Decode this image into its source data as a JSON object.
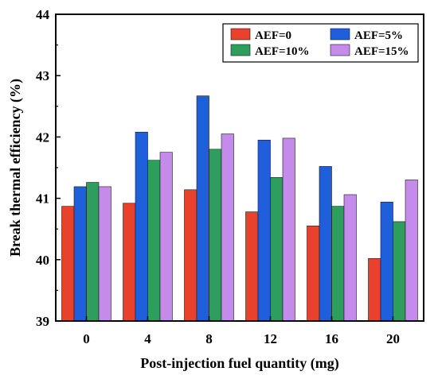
{
  "chart_data": {
    "type": "bar",
    "title": "",
    "xlabel": "Post-injection fuel quantity (mg)",
    "ylabel": "Break thermal efficiency (%)",
    "categories": [
      "0",
      "4",
      "8",
      "12",
      "16",
      "20"
    ],
    "ylim": [
      39,
      44
    ],
    "yticks": [
      "39",
      "40",
      "41",
      "42",
      "43",
      "44"
    ],
    "grid": false,
    "legend_position": "top-right",
    "series": [
      {
        "name": "AEF=0",
        "color": "#e8412c",
        "values": [
          40.87,
          40.92,
          41.14,
          40.78,
          40.55,
          40.02
        ]
      },
      {
        "name": "AEF=5%",
        "color": "#1f5fdc",
        "values": [
          41.19,
          42.08,
          42.67,
          41.95,
          41.52,
          40.94
        ]
      },
      {
        "name": "AEF=10%",
        "color": "#2e9e5e",
        "values": [
          41.26,
          41.62,
          41.8,
          41.34,
          40.87,
          40.62
        ]
      },
      {
        "name": "AEF=15%",
        "color": "#c58bea",
        "values": [
          41.19,
          41.75,
          42.05,
          41.98,
          41.06,
          41.3
        ]
      }
    ]
  }
}
